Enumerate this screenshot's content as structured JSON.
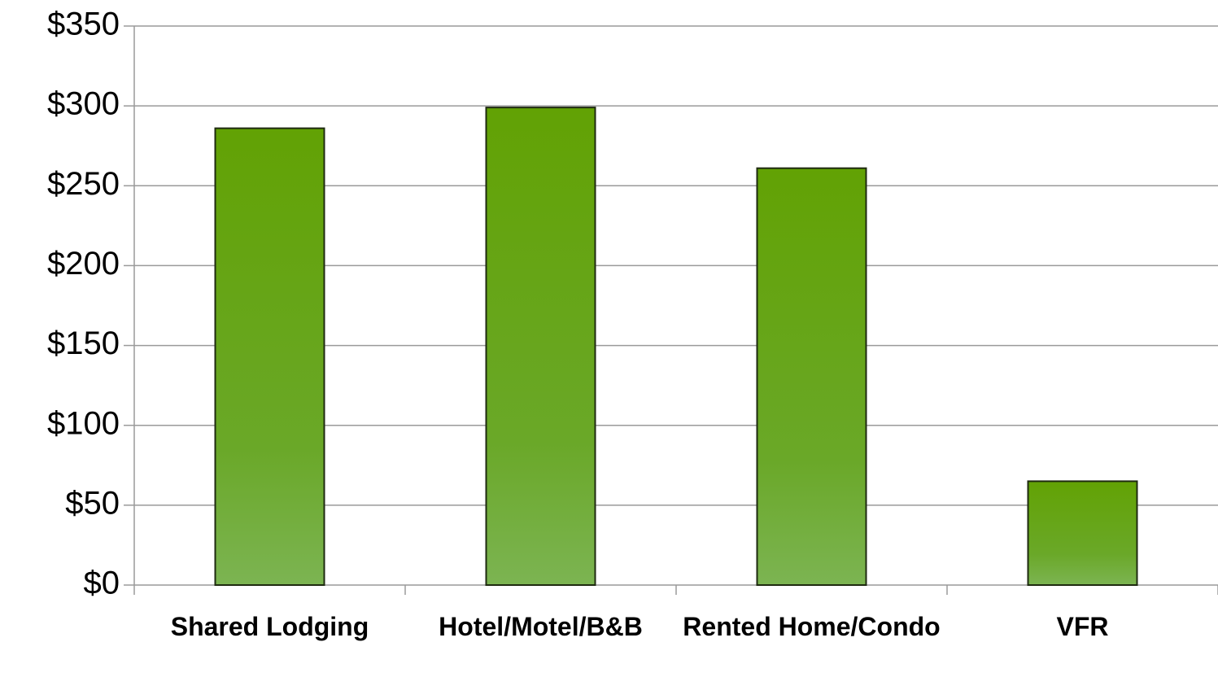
{
  "chart_data": {
    "type": "bar",
    "categories": [
      "Shared Lodging",
      "Hotel/Motel/B&B",
      "Rented Home/Condo",
      "VFR"
    ],
    "values": [
      286,
      299,
      261,
      65
    ],
    "color": "#66a812",
    "ylim": [
      0,
      350
    ],
    "yticks": [
      {
        "value": 0,
        "label": "$0"
      },
      {
        "value": 50,
        "label": "$50"
      },
      {
        "value": 100,
        "label": "$100"
      },
      {
        "value": 150,
        "label": "$150"
      },
      {
        "value": 200,
        "label": "$200"
      },
      {
        "value": 250,
        "label": "$250"
      },
      {
        "value": 300,
        "label": "$300"
      },
      {
        "value": 350,
        "label": "$350"
      }
    ],
    "grid": true
  }
}
